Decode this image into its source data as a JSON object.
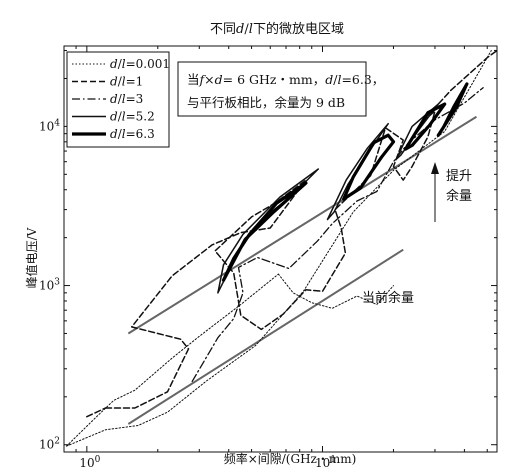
{
  "chart_data": {
    "type": "line",
    "title": [
      {
        "t": "不同"
      },
      {
        "t": "d",
        "i": true
      },
      {
        "t": "/"
      },
      {
        "t": "l",
        "i": true
      },
      {
        "t": "下的微放电区域"
      }
    ],
    "xlabel": "频率×间隙/(GHz・mm)",
    "ylabel": "峰值电压/V",
    "xscale": "log",
    "yscale": "log",
    "xlim": [
      0.8,
      55
    ],
    "ylim": [
      90,
      32000
    ],
    "x_ticks": [
      {
        "value": 1,
        "base": "10",
        "exp": "0"
      },
      {
        "value": 10,
        "base": "10",
        "exp": "1"
      }
    ],
    "y_ticks": [
      {
        "value": 100,
        "base": "10",
        "exp": "2"
      },
      {
        "value": 1000,
        "base": "10",
        "exp": "3"
      },
      {
        "value": 10000,
        "base": "10",
        "exp": "4"
      }
    ],
    "legend_position": "top-left",
    "series": [
      {
        "name": [
          {
            "t": "d",
            "i": true
          },
          {
            "t": "/"
          },
          {
            "t": "l",
            "i": true
          },
          {
            "t": "=0.001"
          }
        ],
        "color": "#111111",
        "dash": "1.5,2",
        "stroke_width": 1,
        "zones": [
          [
            [
              0.82,
              98
            ],
            [
              1.2,
              124
            ],
            [
              1.65,
              132
            ],
            [
              2.2,
              160
            ],
            [
              3.2,
              250
            ],
            [
              5.2,
              420
            ],
            [
              8.3,
              920
            ],
            [
              13.5,
              2900
            ],
            [
              20,
              5300
            ],
            [
              33,
              9300
            ],
            [
              52,
              30000
            ]
          ],
          [
            [
              0.82,
              98
            ],
            [
              1.1,
              150
            ],
            [
              1.3,
              190
            ],
            [
              1.6,
              220
            ],
            [
              2.3,
              350
            ],
            [
              3.0,
              480
            ],
            [
              4.5,
              760
            ],
            [
              6.5,
              1180
            ]
          ],
          [
            [
              6.5,
              1180
            ],
            [
              7.5,
              900
            ],
            [
              9.0,
              780
            ],
            [
              11,
              720
            ],
            [
              14,
              860
            ],
            [
              17,
              760
            ],
            [
              20,
              1000
            ]
          ]
        ]
      },
      {
        "name": [
          {
            "t": "d",
            "i": true
          },
          {
            "t": "/"
          },
          {
            "t": "l",
            "i": true
          },
          {
            "t": "=1"
          }
        ],
        "color": "#111111",
        "dash": "6,3",
        "stroke_width": 1.5,
        "zones": [
          [
            [
              1.2,
              170
            ],
            [
              1.6,
              170
            ],
            [
              2.2,
              215
            ],
            [
              2.7,
              400
            ],
            [
              2.5,
              460
            ],
            [
              1.55,
              550
            ],
            [
              2.3,
              1150
            ],
            [
              3.4,
              1800
            ],
            [
              4.5,
              2150
            ],
            [
              6,
              2300
            ],
            [
              8.5,
              4600
            ],
            [
              6.3,
              3300
            ],
            [
              5,
              2700
            ],
            [
              3.5,
              1650
            ],
            [
              4.2,
              1200
            ],
            [
              4.5,
              650
            ],
            [
              5.5,
              530
            ],
            [
              6.8,
              660
            ],
            [
              8.5,
              940
            ],
            [
              10,
              920
            ],
            [
              12.5,
              1600
            ],
            [
              12,
              2300
            ],
            [
              11.3,
              3000
            ],
            [
              16,
              4900
            ],
            [
              18.5,
              9800
            ],
            [
              22,
              8200
            ],
            [
              20,
              5600
            ],
            [
              22,
              4600
            ],
            [
              24,
              5600
            ],
            [
              28,
              8600
            ],
            [
              30,
              12500
            ],
            [
              26,
              10400
            ],
            [
              35,
              16800
            ],
            [
              50,
              27000
            ],
            [
              55,
              30000
            ]
          ],
          [
            [
              1.0,
              150
            ],
            [
              1.2,
              170
            ]
          ]
        ]
      },
      {
        "name": [
          {
            "t": "d",
            "i": true
          },
          {
            "t": "/"
          },
          {
            "t": "l",
            "i": true
          },
          {
            "t": "=3"
          }
        ],
        "color": "#111111",
        "dash": "8,3,1.5,3",
        "stroke_width": 1.3,
        "zones": [
          [
            [
              2.8,
              250
            ],
            [
              3.6,
              470
            ],
            [
              4.2,
              620
            ],
            [
              4.6,
              900
            ],
            [
              4.4,
              1300
            ],
            [
              5.3,
              1500
            ],
            [
              7.2,
              1280
            ],
            [
              9.5,
              1900
            ],
            [
              11,
              2450
            ],
            [
              14,
              3400
            ],
            [
              17,
              3900
            ],
            [
              20,
              6000
            ],
            [
              23,
              7800
            ],
            [
              30,
              11000
            ],
            [
              40,
              14000
            ],
            [
              48,
              17500
            ]
          ]
        ]
      },
      {
        "name": [
          {
            "t": "d",
            "i": true
          },
          {
            "t": "/"
          },
          {
            "t": "l",
            "i": true
          },
          {
            "t": "=5.2"
          }
        ],
        "color": "#111111",
        "dash": "",
        "stroke_width": 1.5,
        "zones": [
          [
            [
              3.6,
              900
            ],
            [
              4.5,
              1750
            ],
            [
              5.7,
              2700
            ],
            [
              7.3,
              3600
            ],
            [
              9.6,
              5400
            ],
            [
              6.6,
              3600
            ],
            [
              4.6,
              2100
            ],
            [
              3.8,
              1350
            ],
            [
              3.6,
              900
            ]
          ],
          [
            [
              10.5,
              2600
            ],
            [
              12.6,
              4600
            ],
            [
              15.5,
              7300
            ],
            [
              19,
              10400
            ],
            [
              16,
              7200
            ],
            [
              12.8,
              4300
            ],
            [
              11.2,
              2900
            ],
            [
              10.5,
              2600
            ]
          ],
          [
            [
              20.5,
              6200
            ],
            [
              24,
              10000
            ],
            [
              31,
              13800
            ],
            [
              26,
              9800
            ],
            [
              21.5,
              6600
            ],
            [
              20.5,
              6200
            ]
          ]
        ]
      },
      {
        "name": [
          {
            "t": "d",
            "i": true
          },
          {
            "t": "/"
          },
          {
            "t": "l",
            "i": true
          },
          {
            "t": "=6.3"
          }
        ],
        "color": "#000000",
        "dash": "",
        "stroke_width": 3.2,
        "zones": [
          [
            [
              3.8,
              1080
            ],
            [
              4.7,
              1950
            ],
            [
              6.2,
              2900
            ],
            [
              8.5,
              4400
            ],
            [
              6.4,
              3300
            ],
            [
              4.9,
              2100
            ],
            [
              4.2,
              1480
            ],
            [
              3.8,
              1080
            ]
          ],
          [
            [
              12.3,
              3500
            ],
            [
              13.5,
              4800
            ],
            [
              16.5,
              7900
            ],
            [
              19,
              8800
            ],
            [
              20,
              8000
            ],
            [
              17.8,
              6400
            ],
            [
              14.5,
              4100
            ],
            [
              12.3,
              3500
            ]
          ],
          [
            [
              22.5,
              7200
            ],
            [
              28,
              12200
            ],
            [
              33,
              13800
            ],
            [
              28.5,
              10200
            ],
            [
              24,
              7600
            ],
            [
              22.5,
              7200
            ]
          ],
          [
            [
              31,
              8800
            ],
            [
              37,
              13200
            ],
            [
              41,
              18500
            ],
            [
              36,
              13200
            ],
            [
              32.5,
              9800
            ],
            [
              31,
              8800
            ]
          ]
        ]
      }
    ],
    "reference_lines": [
      {
        "name": "current_margin",
        "points": [
          [
            1.5,
            135
          ],
          [
            22,
            1680
          ]
        ],
        "color": "#666666",
        "stroke_width": 2
      },
      {
        "name": "improved_margin",
        "points": [
          [
            1.5,
            500
          ],
          [
            45,
            11500
          ]
        ],
        "color": "#666666",
        "stroke_width": 2
      }
    ],
    "annotations": {
      "box_line1": [
        {
          "t": "当"
        },
        {
          "t": "f",
          "i": true
        },
        {
          "t": "×"
        },
        {
          "t": "d",
          "i": true
        },
        {
          "t": "= 6 GHz・mm，"
        },
        {
          "t": "d",
          "i": true
        },
        {
          "t": "/"
        },
        {
          "t": "l",
          "i": true
        },
        {
          "t": "=6.3，"
        }
      ],
      "box_line2": [
        {
          "t": "与平行板相比，余量为 9 dB"
        }
      ],
      "upgrade_line1": "提升",
      "upgrade_line2": "余量",
      "current_margin": "当前余量"
    }
  }
}
